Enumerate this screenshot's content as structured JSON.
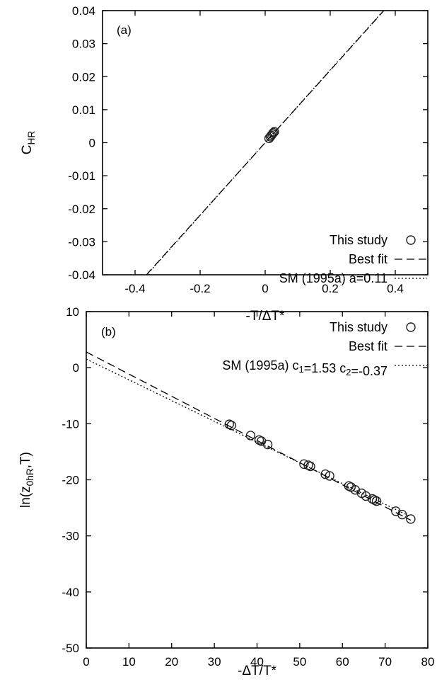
{
  "chart_data": [
    {
      "type": "scatter",
      "panel_label": "(a)",
      "xlabel": "-T/ΔT*",
      "ylabel": "C_HR",
      "xlim": [
        -0.5,
        0.5
      ],
      "ylim": [
        -0.04,
        0.04
      ],
      "x_ticks": [
        -0.4,
        -0.2,
        0,
        0.2,
        0.4
      ],
      "x_tick_labels": [
        "-0.4",
        "-0.2",
        "0",
        "0.2",
        "0.4"
      ],
      "y_ticks": [
        -0.04,
        -0.03,
        -0.02,
        -0.01,
        0,
        0.01,
        0.02,
        0.03,
        0.04
      ],
      "y_tick_labels": [
        "-0.04",
        "-0.03",
        "-0.02",
        "-0.01",
        "0",
        "0.01",
        "0.02",
        "0.03",
        "0.04"
      ],
      "grid": false,
      "legend_position": "bottom-right",
      "series": [
        {
          "name": "This study",
          "style": "circles",
          "x": [
            0.012,
            0.016,
            0.019,
            0.022,
            0.025,
            0.028
          ],
          "y": [
            0.0013,
            0.0018,
            0.0022,
            0.0026,
            0.003,
            0.0033
          ]
        },
        {
          "name": "Best fit",
          "style": "dashed",
          "x": [
            -0.365,
            0.365
          ],
          "y": [
            -0.04,
            0.04
          ]
        },
        {
          "name": "SM (1995a) a=0.11",
          "style": "dotted",
          "x": [
            -0.36,
            0.36
          ],
          "y": [
            -0.0396,
            0.0396
          ]
        }
      ]
    },
    {
      "type": "scatter",
      "panel_label": "(b)",
      "xlabel": "-ΔT/T*",
      "ylabel": "ln(z_0hR,T)",
      "xlim": [
        0,
        80
      ],
      "ylim": [
        -50,
        10
      ],
      "x_ticks": [
        0,
        10,
        20,
        30,
        40,
        50,
        60,
        70,
        80
      ],
      "x_tick_labels": [
        "0",
        "10",
        "20",
        "30",
        "40",
        "50",
        "60",
        "70",
        "80"
      ],
      "y_ticks": [
        -50,
        -40,
        -30,
        -20,
        -10,
        0,
        10
      ],
      "y_tick_labels": [
        "-50",
        "-40",
        "-30",
        "-20",
        "-10",
        "0",
        "10"
      ],
      "grid": false,
      "legend_position": "top-right",
      "series": [
        {
          "name": "This study",
          "style": "circles",
          "x": [
            33.5,
            34,
            38.5,
            40.5,
            41,
            42.5,
            51,
            52,
            52.5,
            56,
            57,
            61.5,
            62,
            63,
            64.5,
            65.5,
            67,
            67.5,
            68,
            72.5,
            74,
            76
          ],
          "y": [
            -10.1,
            -10.3,
            -12.1,
            -12.9,
            -13.1,
            -13.7,
            -17.2,
            -17.4,
            -17.6,
            -19.0,
            -19.3,
            -21.1,
            -21.3,
            -21.8,
            -22.4,
            -22.9,
            -23.4,
            -23.6,
            -23.8,
            -25.6,
            -26.2,
            -27.0
          ]
        },
        {
          "name": "Best fit",
          "style": "dashed",
          "x": [
            0,
            76
          ],
          "y": [
            2.8,
            -27.2
          ]
        },
        {
          "name": "SM (1995a) c1=1.53 c2=-0.37",
          "style": "dotted",
          "x": [
            0,
            76
          ],
          "y": [
            1.53,
            -26.59
          ]
        }
      ]
    }
  ]
}
